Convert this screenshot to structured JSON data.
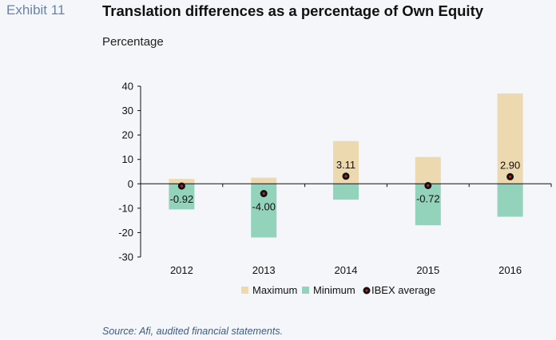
{
  "header": {
    "exhibit": "Exhibit 11",
    "title": "Translation differences as a percentage of Own Equity"
  },
  "footer": {
    "source": "Source: Afi, audited financial statements."
  },
  "colors": {
    "maximum": "#ecd9b0",
    "minimum": "#93d3bc",
    "ibex_fill": "#111111",
    "ibex_dot": "#c22222",
    "axis": "#111111",
    "background": "#f4f6f9"
  },
  "chart_data": {
    "type": "bar",
    "title": "",
    "ylabel": "Percentage",
    "xlabel": "",
    "ylim": [
      -30,
      40
    ],
    "yticks": [
      40,
      30,
      20,
      10,
      0,
      -10,
      -20,
      -30
    ],
    "ytick_labels": [
      "40",
      "30",
      "20",
      "10",
      "0",
      "-10",
      "-20",
      "-30"
    ],
    "grid": false,
    "legend_position": "bottom",
    "categories": [
      "2012",
      "2013",
      "2014",
      "2015",
      "2016"
    ],
    "series": [
      {
        "name": "Maximum",
        "kind": "bar",
        "values": [
          2,
          2.5,
          17.5,
          11,
          37
        ]
      },
      {
        "name": "Minimum",
        "kind": "bar",
        "values": [
          -10.5,
          -22,
          -6.5,
          -17,
          -13.5
        ]
      },
      {
        "name": "IBEX average",
        "kind": "point",
        "values": [
          -0.92,
          -4.0,
          3.11,
          -0.72,
          2.9
        ]
      }
    ],
    "data_labels": [
      "-0.92",
      "-4.00",
      "3.11",
      "-0.72",
      "2.90"
    ]
  }
}
